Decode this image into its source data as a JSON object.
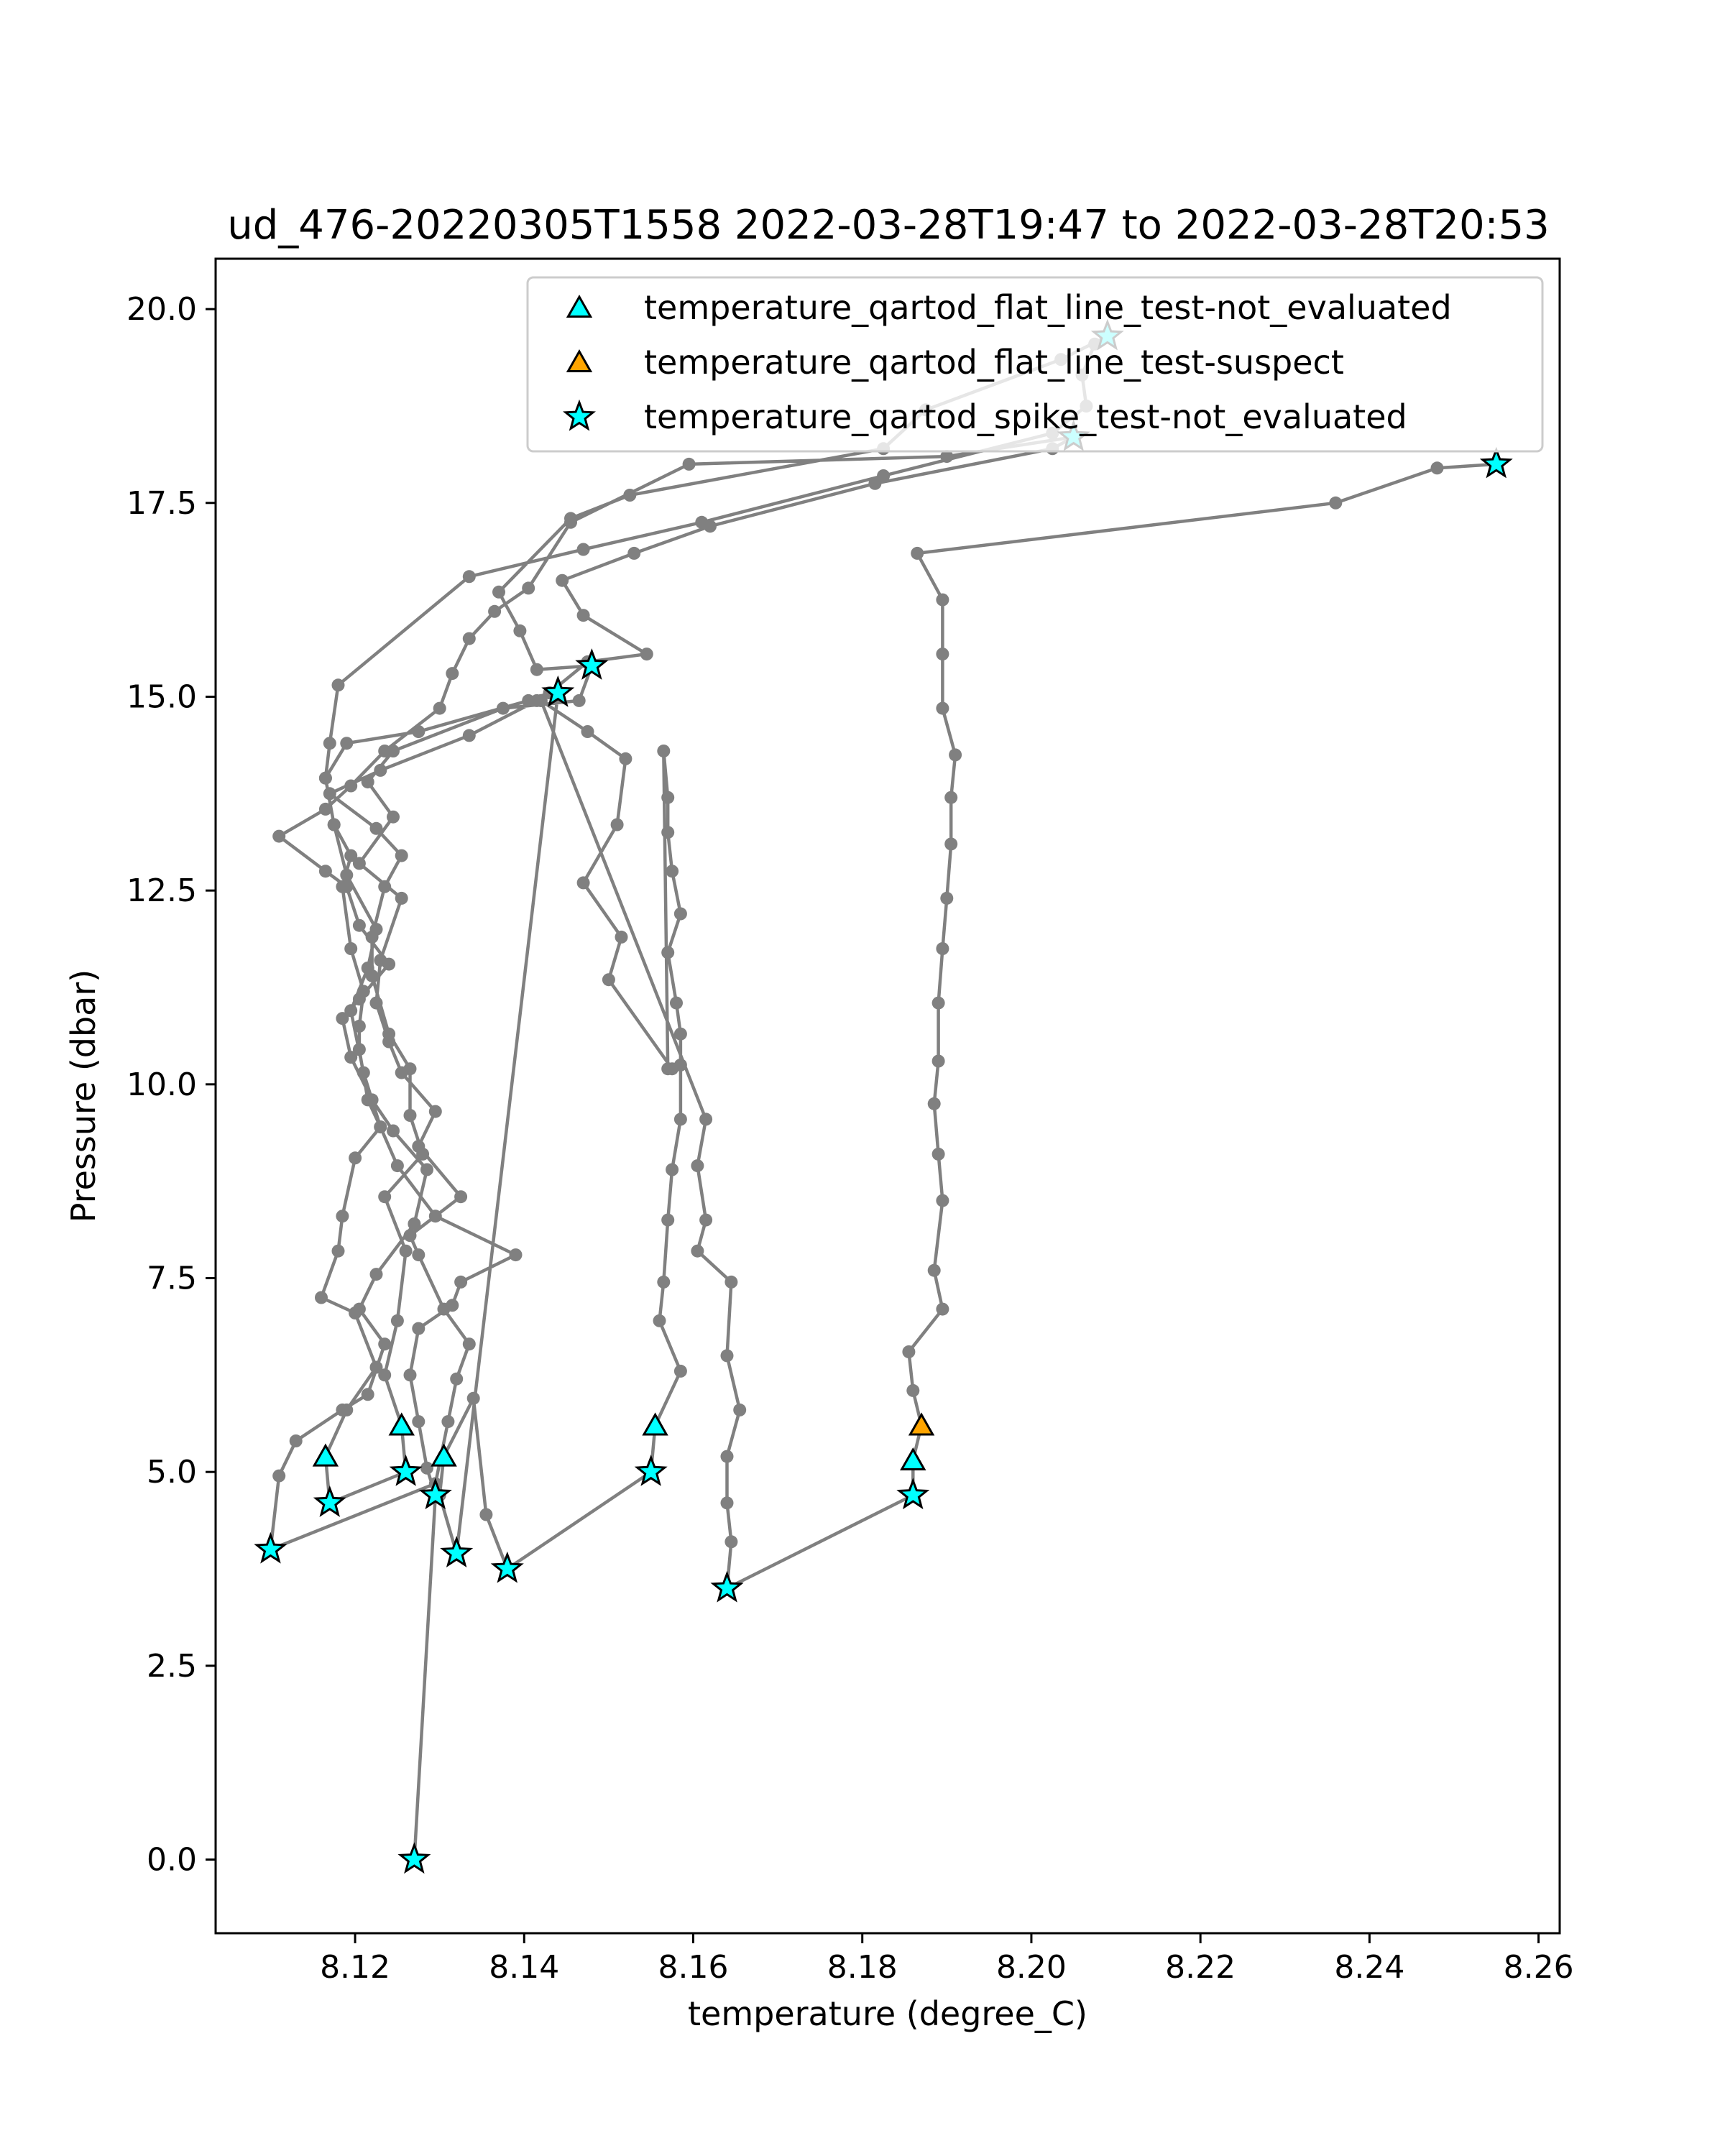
{
  "chart_data": {
    "type": "scatter",
    "title": "ud_476-20220305T1558 2022-03-28T19:47 to 2022-03-28T20:53",
    "xlabel": "temperature (degree_C)",
    "ylabel": "Pressure (dbar)",
    "xlim": [
      8.1035,
      8.2625
    ],
    "ylim": [
      20.65,
      -0.95
    ],
    "y_inverted": true,
    "grid": false,
    "legend_position": "top-right",
    "x_ticks": [
      "8.12",
      "8.14",
      "8.16",
      "8.18",
      "8.20",
      "8.22",
      "8.24",
      "8.26"
    ],
    "x_tick_values": [
      8.12,
      8.14,
      8.16,
      8.18,
      8.2,
      8.22,
      8.24,
      8.26
    ],
    "y_ticks": [
      "0.0",
      "2.5",
      "5.0",
      "7.5",
      "10.0",
      "12.5",
      "15.0",
      "17.5",
      "20.0"
    ],
    "y_tick_values": [
      0,
      2.5,
      5,
      7.5,
      10,
      12.5,
      15,
      17.5,
      20
    ],
    "colors": {
      "profile": "#808080",
      "not_evaluated": "#00ffff",
      "suspect": "#ffa500",
      "marker_edge": "#000000"
    },
    "series": [
      {
        "name": "temperature",
        "style": "line-with-dots",
        "points": [
          [
            8.127,
            0.0
          ],
          [
            8.1295,
            4.7
          ],
          [
            8.1285,
            5.05
          ],
          [
            8.1275,
            5.65
          ],
          [
            8.1265,
            6.25
          ],
          [
            8.1275,
            6.85
          ],
          [
            8.1315,
            7.15
          ],
          [
            8.1325,
            7.45
          ],
          [
            8.139,
            7.8
          ],
          [
            8.1295,
            8.3
          ],
          [
            8.125,
            8.95
          ],
          [
            8.123,
            9.45
          ],
          [
            8.121,
            10.15
          ],
          [
            8.1195,
            10.95
          ],
          [
            8.1215,
            11.5
          ],
          [
            8.1225,
            12.0
          ],
          [
            8.119,
            12.7
          ],
          [
            8.1175,
            13.35
          ],
          [
            8.1165,
            13.95
          ],
          [
            8.119,
            14.4
          ],
          [
            8.1275,
            14.55
          ],
          [
            8.1405,
            14.95
          ],
          [
            8.143,
            15.05
          ],
          [
            8.143,
            15.05
          ],
          [
            8.1475,
            15.45
          ],
          [
            8.1545,
            15.55
          ],
          [
            8.147,
            16.05
          ],
          [
            8.1445,
            16.5
          ],
          [
            8.153,
            16.85
          ],
          [
            8.162,
            17.2
          ],
          [
            8.1815,
            17.75
          ],
          [
            8.2025,
            18.2
          ],
          [
            8.205,
            18.35
          ],
          [
            8.205,
            18.35
          ],
          [
            8.19,
            18.1
          ],
          [
            8.1595,
            18.0
          ],
          [
            8.1455,
            17.25
          ],
          [
            8.1405,
            16.4
          ],
          [
            8.1365,
            16.1
          ],
          [
            8.1335,
            15.75
          ],
          [
            8.1315,
            15.3
          ],
          [
            8.13,
            14.85
          ],
          [
            8.1235,
            14.3
          ],
          [
            8.1195,
            13.85
          ],
          [
            8.1165,
            13.55
          ],
          [
            8.111,
            13.2
          ],
          [
            8.1165,
            12.75
          ],
          [
            8.119,
            12.55
          ],
          [
            8.1205,
            12.05
          ],
          [
            8.124,
            11.55
          ],
          [
            8.1205,
            11.1
          ],
          [
            8.1185,
            10.85
          ],
          [
            8.1195,
            10.35
          ],
          [
            8.122,
            9.8
          ],
          [
            8.1245,
            9.4
          ],
          [
            8.1285,
            8.9
          ],
          [
            8.127,
            8.2
          ],
          [
            8.1225,
            7.55
          ],
          [
            8.1205,
            7.1
          ],
          [
            8.1235,
            6.65
          ],
          [
            8.1215,
            6.0
          ],
          [
            8.1185,
            5.8
          ],
          [
            8.113,
            5.4
          ],
          [
            8.111,
            4.95
          ],
          [
            8.11,
            4.0
          ],
          [
            8.11,
            4.0
          ],
          [
            8.1295,
            4.85
          ],
          [
            8.131,
            5.65
          ],
          [
            8.132,
            6.2
          ],
          [
            8.1335,
            6.65
          ],
          [
            8.1305,
            7.1
          ],
          [
            8.1275,
            7.8
          ],
          [
            8.1265,
            8.05
          ],
          [
            8.1325,
            8.55
          ],
          [
            8.1275,
            9.2
          ],
          [
            8.1295,
            9.65
          ],
          [
            8.1255,
            10.15
          ],
          [
            8.124,
            10.55
          ],
          [
            8.1225,
            11.05
          ],
          [
            8.123,
            11.6
          ],
          [
            8.1255,
            12.4
          ],
          [
            8.1205,
            12.85
          ],
          [
            8.1245,
            13.45
          ],
          [
            8.1215,
            13.9
          ],
          [
            8.1245,
            14.3
          ],
          [
            8.1375,
            14.85
          ],
          [
            8.1465,
            14.95
          ],
          [
            8.148,
            15.4
          ],
          [
            8.148,
            15.4
          ],
          [
            8.1415,
            15.35
          ],
          [
            8.1395,
            15.85
          ],
          [
            8.137,
            16.35
          ],
          [
            8.1455,
            17.3
          ],
          [
            8.1525,
            17.6
          ],
          [
            8.1825,
            18.2
          ],
          [
            8.1875,
            18.7
          ],
          [
            8.2035,
            19.35
          ],
          [
            8.209,
            19.65
          ],
          [
            8.209,
            19.65
          ],
          [
            8.2075,
            19.55
          ],
          [
            8.206,
            19.15
          ],
          [
            8.2065,
            18.75
          ],
          [
            8.2025,
            18.4
          ],
          [
            8.1825,
            17.85
          ],
          [
            8.161,
            17.25
          ],
          [
            8.147,
            16.9
          ],
          [
            8.1335,
            16.55
          ],
          [
            8.118,
            15.15
          ],
          [
            8.117,
            14.4
          ],
          [
            8.1165,
            13.95
          ],
          [
            8.1175,
            13.35
          ],
          [
            8.1195,
            12.95
          ],
          [
            8.1185,
            12.55
          ],
          [
            8.1195,
            11.75
          ],
          [
            8.121,
            11.2
          ],
          [
            8.1205,
            10.75
          ],
          [
            8.1205,
            10.45
          ],
          [
            8.1215,
            9.8
          ],
          [
            8.123,
            9.45
          ],
          [
            8.12,
            9.05
          ],
          [
            8.1185,
            8.3
          ],
          [
            8.118,
            7.85
          ],
          [
            8.116,
            7.25
          ],
          [
            8.12,
            7.05
          ],
          [
            8.1225,
            6.35
          ],
          [
            8.119,
            5.8
          ],
          [
            8.1165,
            5.2
          ],
          [
            8.117,
            4.6
          ],
          [
            8.117,
            4.6
          ],
          [
            8.126,
            5.0
          ],
          [
            8.1255,
            5.6
          ],
          [
            8.1235,
            6.25
          ],
          [
            8.125,
            6.95
          ],
          [
            8.126,
            7.85
          ],
          [
            8.1235,
            8.55
          ],
          [
            8.128,
            9.1
          ],
          [
            8.1265,
            9.6
          ],
          [
            8.1265,
            10.2
          ],
          [
            8.124,
            10.65
          ],
          [
            8.122,
            11.4
          ],
          [
            8.122,
            11.9
          ],
          [
            8.1235,
            12.55
          ],
          [
            8.1255,
            12.95
          ],
          [
            8.1225,
            13.3
          ],
          [
            8.117,
            13.75
          ],
          [
            8.123,
            14.05
          ],
          [
            8.1335,
            14.5
          ],
          [
            8.1415,
            14.95
          ],
          [
            8.144,
            15.05
          ],
          [
            8.132,
            3.95
          ],
          [
            8.13,
            4.7
          ],
          [
            8.1305,
            5.2
          ],
          [
            8.134,
            5.95
          ],
          [
            8.1355,
            4.45
          ],
          [
            8.138,
            3.75
          ],
          [
            8.155,
            5.0
          ],
          [
            8.155,
            5.0
          ],
          [
            8.1555,
            5.6
          ],
          [
            8.1585,
            6.3
          ],
          [
            8.156,
            6.95
          ],
          [
            8.1565,
            7.45
          ],
          [
            8.157,
            8.25
          ],
          [
            8.1575,
            8.9
          ],
          [
            8.1585,
            9.55
          ],
          [
            8.1585,
            10.25
          ],
          [
            8.1585,
            10.65
          ],
          [
            8.158,
            11.05
          ],
          [
            8.157,
            11.7
          ],
          [
            8.1585,
            12.2
          ],
          [
            8.1575,
            12.75
          ],
          [
            8.157,
            13.25
          ],
          [
            8.157,
            13.7
          ],
          [
            8.1565,
            14.3
          ],
          [
            8.157,
            10.2
          ],
          [
            8.1575,
            10.2
          ],
          [
            8.15,
            11.35
          ],
          [
            8.1515,
            11.9
          ],
          [
            8.147,
            12.6
          ],
          [
            8.151,
            13.35
          ],
          [
            8.152,
            14.2
          ],
          [
            8.1475,
            14.55
          ],
          [
            8.142,
            14.95
          ],
          [
            8.142,
            14.95
          ],
          [
            8.1615,
            9.55
          ],
          [
            8.1605,
            8.95
          ],
          [
            8.1615,
            8.25
          ],
          [
            8.1605,
            7.85
          ],
          [
            8.1645,
            7.45
          ],
          [
            8.164,
            6.5
          ],
          [
            8.1655,
            5.8
          ],
          [
            8.164,
            5.2
          ],
          [
            8.164,
            4.6
          ],
          [
            8.1645,
            4.1
          ],
          [
            8.164,
            3.5
          ],
          [
            8.186,
            4.7
          ],
          [
            8.186,
            4.7
          ],
          [
            8.186,
            5.15
          ],
          [
            8.187,
            5.6
          ],
          [
            8.186,
            6.05
          ],
          [
            8.1855,
            6.55
          ],
          [
            8.1895,
            7.1
          ],
          [
            8.1885,
            7.6
          ],
          [
            8.1895,
            8.5
          ],
          [
            8.189,
            9.1
          ],
          [
            8.1885,
            9.75
          ],
          [
            8.189,
            10.3
          ],
          [
            8.189,
            11.05
          ],
          [
            8.1895,
            11.75
          ],
          [
            8.19,
            12.4
          ],
          [
            8.1905,
            13.1
          ],
          [
            8.1905,
            13.7
          ],
          [
            8.191,
            14.25
          ],
          [
            8.1895,
            14.85
          ],
          [
            8.1895,
            15.55
          ],
          [
            8.1895,
            16.25
          ],
          [
            8.1865,
            16.85
          ],
          [
            8.236,
            17.5
          ],
          [
            8.248,
            17.95
          ],
          [
            8.255,
            18.0
          ]
        ]
      },
      {
        "name": "temperature_qartod_flat_line_test-not_evaluated",
        "marker": "triangle",
        "color": "#00ffff",
        "points": [
          [
            8.1165,
            5.2
          ],
          [
            8.1255,
            5.6
          ],
          [
            8.1305,
            5.2
          ],
          [
            8.1555,
            5.6
          ],
          [
            8.186,
            5.15
          ]
        ]
      },
      {
        "name": "temperature_qartod_flat_line_test-suspect",
        "marker": "triangle",
        "color": "#ffa500",
        "points": [
          [
            8.187,
            5.6
          ]
        ]
      },
      {
        "name": "temperature_qartod_spike_test-not_evaluated",
        "marker": "star",
        "color": "#00ffff",
        "points": [
          [
            8.127,
            0.0
          ],
          [
            8.11,
            4.0
          ],
          [
            8.117,
            4.6
          ],
          [
            8.126,
            5.0
          ],
          [
            8.1295,
            4.7
          ],
          [
            8.132,
            3.95
          ],
          [
            8.138,
            3.75
          ],
          [
            8.155,
            5.0
          ],
          [
            8.164,
            3.5
          ],
          [
            8.186,
            4.7
          ],
          [
            8.144,
            15.05
          ],
          [
            8.148,
            15.4
          ],
          [
            8.205,
            18.35
          ],
          [
            8.209,
            19.65
          ],
          [
            8.255,
            18.0
          ]
        ]
      }
    ]
  }
}
